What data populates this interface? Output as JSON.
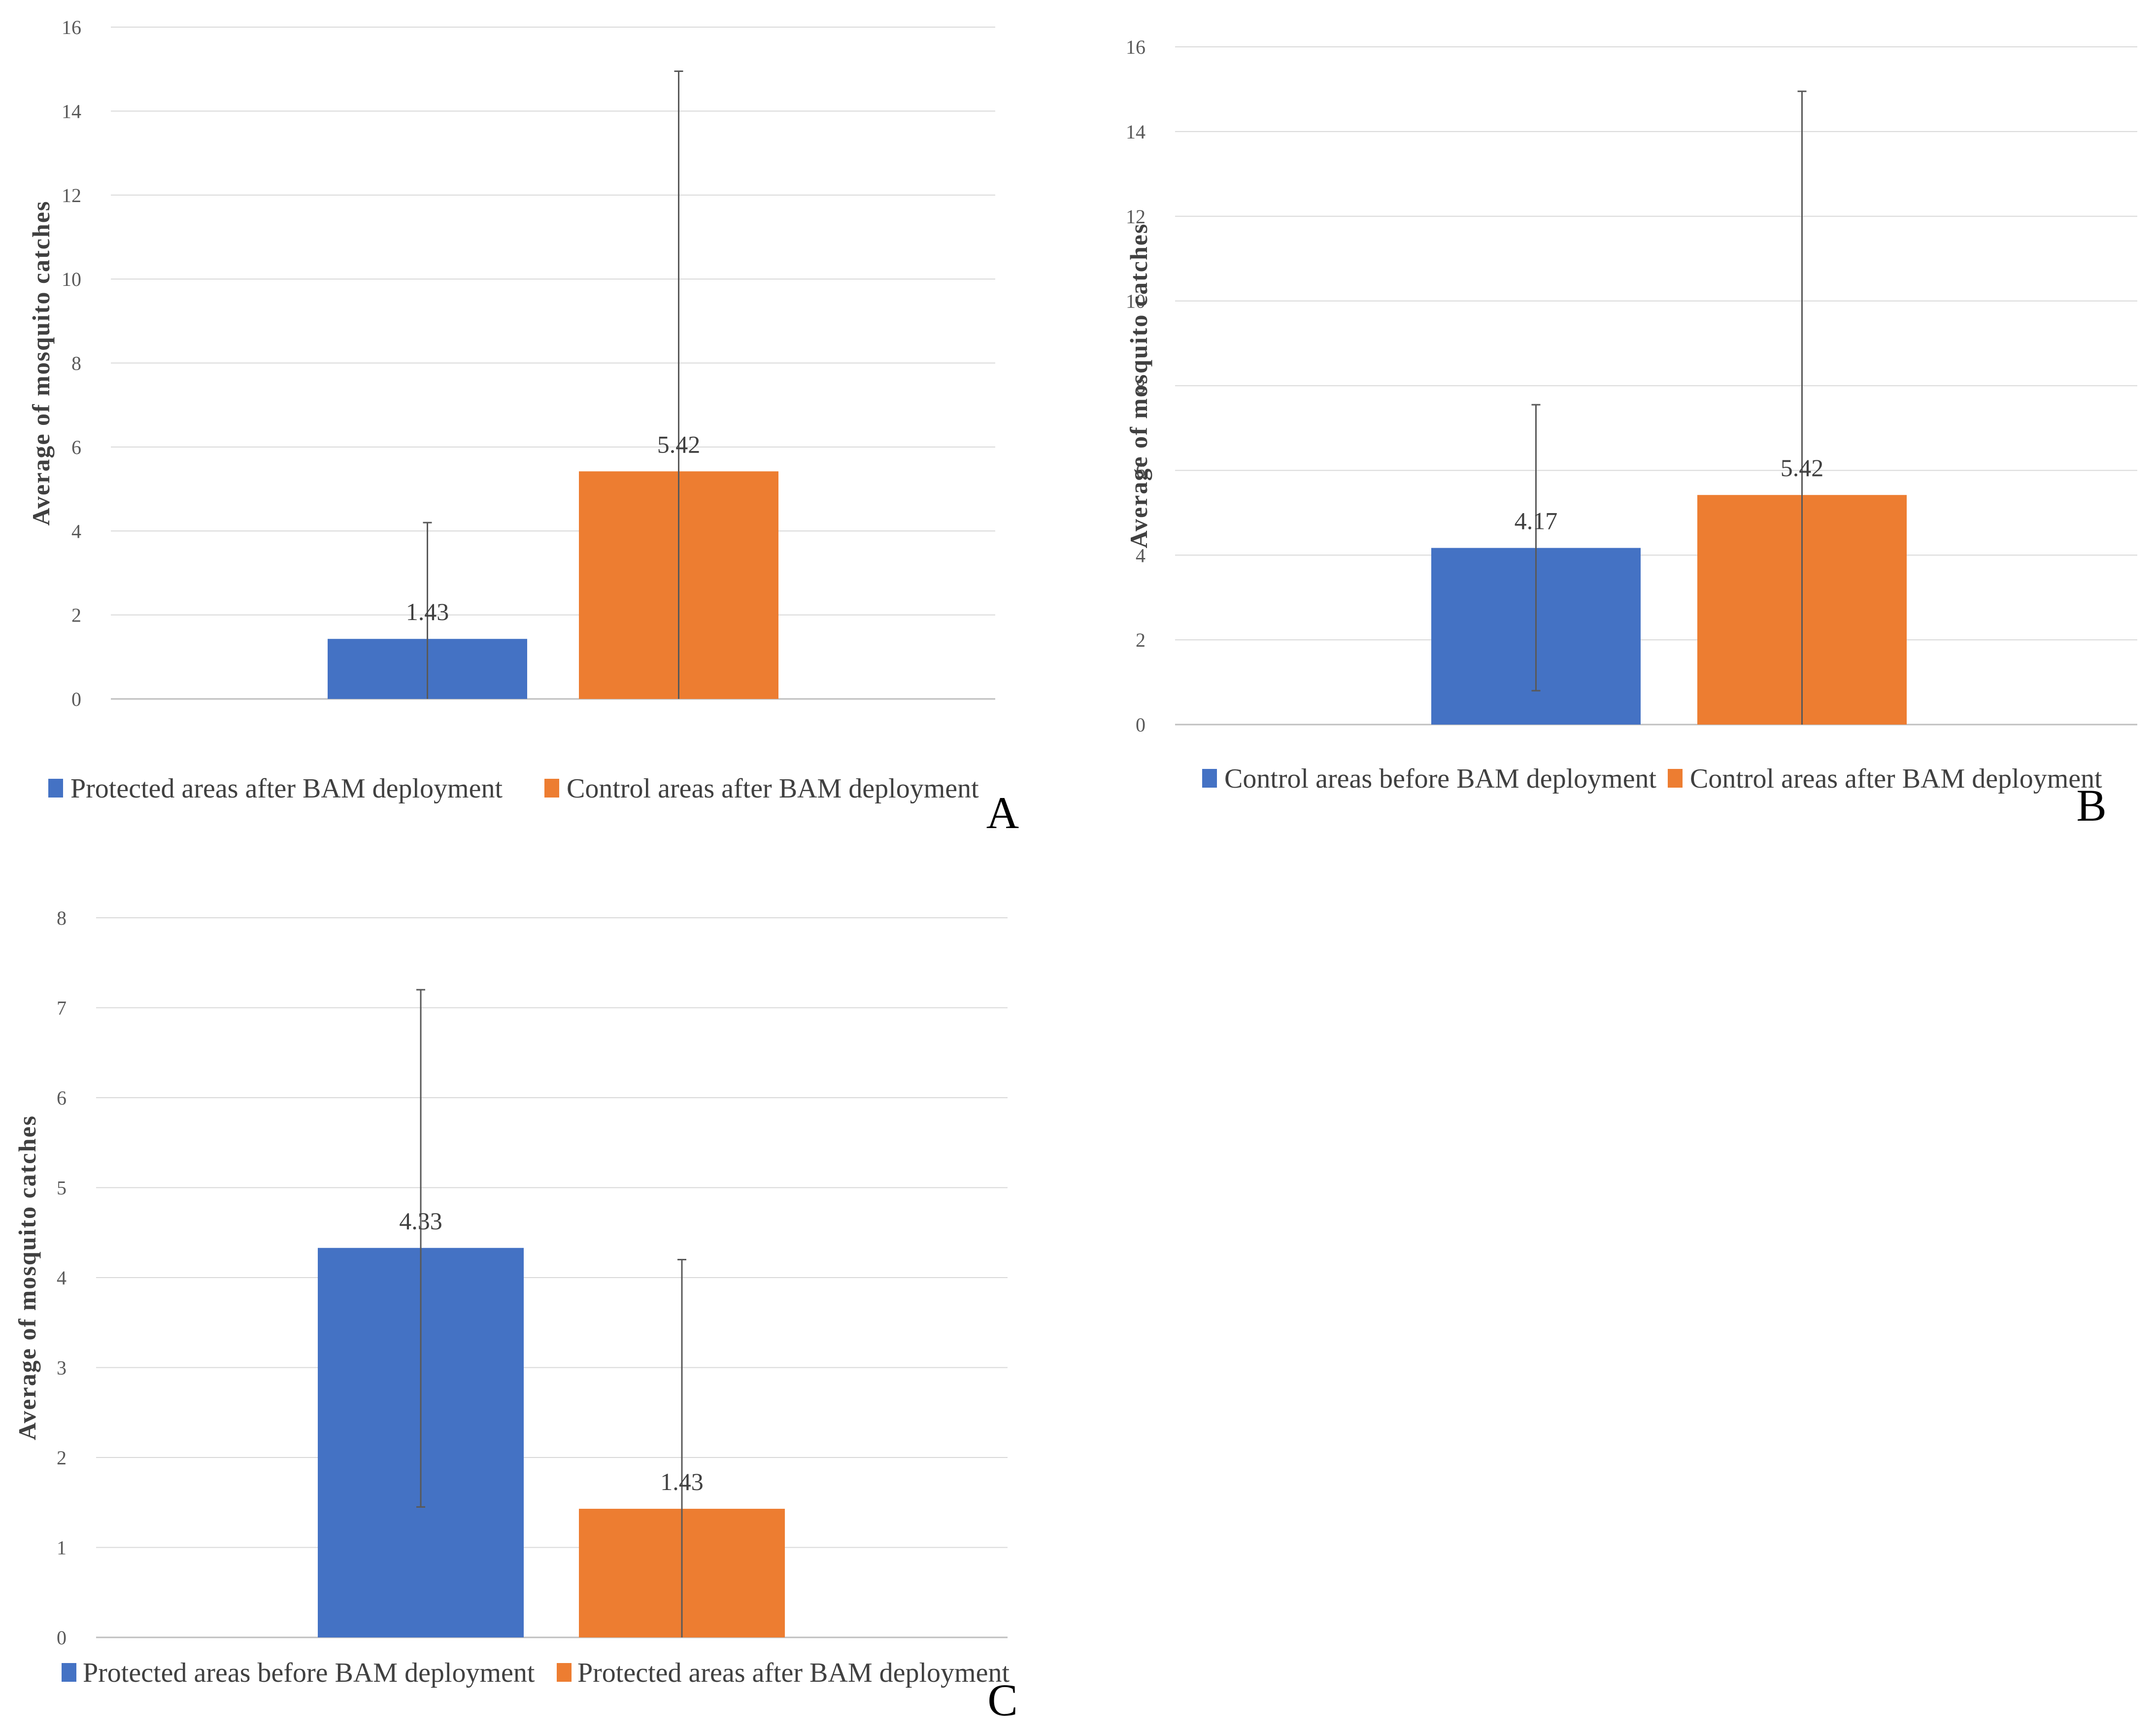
{
  "chart_data": [
    {
      "type": "bar",
      "panel_label": "A",
      "ylabel": "Average of mosquito catches",
      "ylim": [
        0,
        16
      ],
      "yticks": [
        0,
        2,
        4,
        6,
        8,
        10,
        12,
        14,
        16
      ],
      "grid": true,
      "legend_position": "bottom",
      "series": [
        {
          "name": "Protected areas after BAM deployment",
          "value": 1.43,
          "label": "1.43",
          "error_low": 0,
          "error_high": 4.2,
          "color": "#4472C4"
        },
        {
          "name": "Control areas after BAM deployment",
          "value": 5.42,
          "label": "5.42",
          "error_low": 0,
          "error_high": 14.95,
          "color": "#ED7D31"
        }
      ]
    },
    {
      "type": "bar",
      "panel_label": "B",
      "ylabel": "Average of mosquito catches",
      "ylim": [
        0,
        16
      ],
      "yticks": [
        0,
        2,
        4,
        6,
        8,
        10,
        12,
        14,
        16
      ],
      "grid": true,
      "legend_position": "bottom",
      "series": [
        {
          "name": "Control areas before BAM deployment",
          "value": 4.17,
          "label": "4.17",
          "error_low": 0.8,
          "error_high": 7.55,
          "color": "#4472C4"
        },
        {
          "name": "Control areas after BAM deployment",
          "value": 5.42,
          "label": "5.42",
          "error_low": 0,
          "error_high": 14.95,
          "color": "#ED7D31"
        }
      ]
    },
    {
      "type": "bar",
      "panel_label": "C",
      "ylabel": "Average of mosquito catches",
      "ylim": [
        0,
        8
      ],
      "yticks": [
        0,
        1,
        2,
        3,
        4,
        5,
        6,
        7,
        8
      ],
      "grid": true,
      "legend_position": "bottom",
      "series": [
        {
          "name": "Protected areas before BAM deployment",
          "value": 4.33,
          "label": "4.33",
          "error_low": 1.45,
          "error_high": 7.2,
          "color": "#4472C4"
        },
        {
          "name": "Protected areas after BAM deployment",
          "value": 1.43,
          "label": "1.43",
          "error_low": 0,
          "error_high": 4.2,
          "color": "#ED7D31"
        }
      ]
    }
  ]
}
